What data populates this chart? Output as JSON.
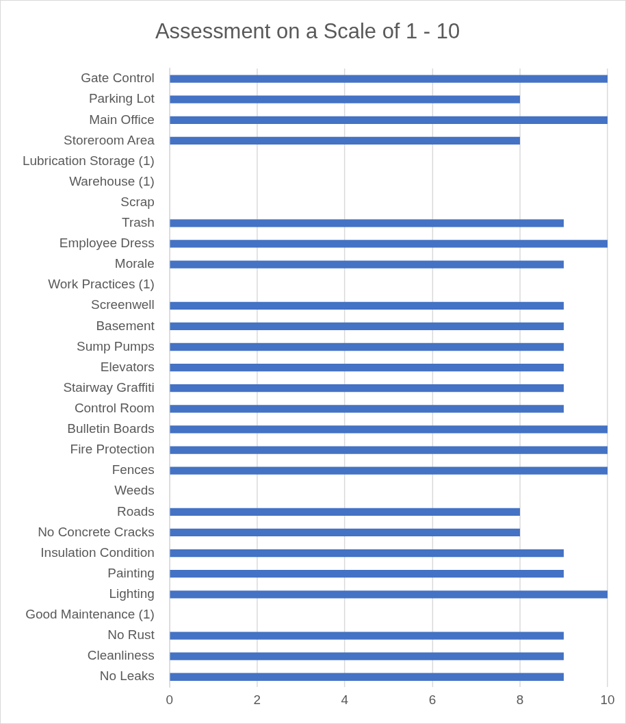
{
  "chart_data": {
    "type": "bar",
    "orientation": "horizontal",
    "title": "Assessment on a Scale of 1 - 10",
    "categories": [
      "Gate Control",
      "Parking Lot",
      "Main Office",
      "Storeroom Area",
      "Lubrication Storage (1)",
      "Warehouse (1)",
      "Scrap",
      "Trash",
      "Employee Dress",
      "Morale",
      "Work Practices (1)",
      "Screenwell",
      "Basement",
      "Sump Pumps",
      "Elevators",
      "Stairway Graffiti",
      "Control Room",
      "Bulletin Boards",
      "Fire Protection",
      "Fences",
      "Weeds",
      "Roads",
      "No Concrete Cracks",
      "Insulation Condition",
      "Painting",
      "Lighting",
      "Good Maintenance (1)",
      "No Rust",
      "Cleanliness",
      "No Leaks"
    ],
    "values": [
      10,
      8,
      10,
      8,
      null,
      null,
      null,
      9,
      10,
      9,
      null,
      9,
      9,
      9,
      9,
      9,
      9,
      10,
      10,
      10,
      null,
      8,
      8,
      9,
      9,
      10,
      null,
      9,
      9,
      9
    ],
    "color": "#4472c4",
    "xlim": [
      0,
      10
    ],
    "xticks": [
      0,
      2,
      4,
      6,
      8,
      10
    ],
    "grid": "x",
    "legend": false
  }
}
